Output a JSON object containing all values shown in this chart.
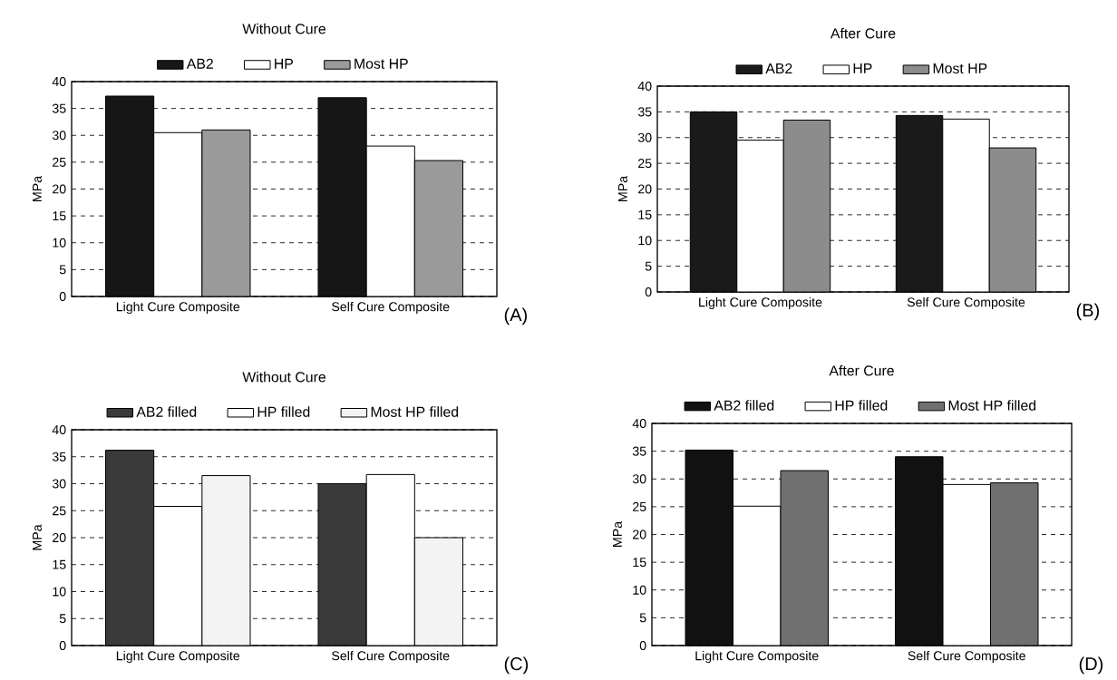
{
  "chart_data": [
    {
      "type": "bar",
      "title": "Without Cure",
      "ylabel": "MPa",
      "categories": [
        "Light Cure Composite",
        "Self Cure Composite"
      ],
      "series": [
        {
          "name": "AB2",
          "color": "#161616",
          "values": [
            37.3,
            37.0
          ]
        },
        {
          "name": "HP",
          "color": "#ffffff",
          "values": [
            30.5,
            28.0
          ]
        },
        {
          "name": "Most HP",
          "color": "#9a9a9a",
          "values": [
            31.0,
            25.3
          ]
        }
      ],
      "ylim": [
        0,
        40
      ],
      "yticks": [
        0,
        5,
        10,
        15,
        20,
        25,
        30,
        35,
        40
      ],
      "grid": "y",
      "legend": "top",
      "annotations": [
        "(A)"
      ]
    },
    {
      "type": "bar",
      "title": "After Cure",
      "ylabel": "MPa",
      "categories": [
        "Light Cure Composite",
        "Self Cure Composite"
      ],
      "series": [
        {
          "name": "AB2",
          "color": "#1a1a1a",
          "values": [
            35.0,
            34.3
          ]
        },
        {
          "name": "HP",
          "color": "#ffffff",
          "values": [
            29.5,
            33.6
          ]
        },
        {
          "name": "Most HP",
          "color": "#8c8c8c",
          "values": [
            33.4,
            28.0
          ]
        }
      ],
      "ylim": [
        0,
        40
      ],
      "yticks": [
        0,
        5,
        10,
        15,
        20,
        25,
        30,
        35,
        40
      ],
      "grid": "y",
      "legend": "top",
      "annotations": [
        "(B)"
      ]
    },
    {
      "type": "bar",
      "title": "Without Cure",
      "ylabel": "MPa",
      "categories": [
        "Light Cure Composite",
        "Self Cure Composite"
      ],
      "series": [
        {
          "name": "AB2 filled",
          "color": "#3a3a3a",
          "values": [
            36.2,
            30.0
          ]
        },
        {
          "name": "HP filled",
          "color": "#ffffff",
          "values": [
            25.8,
            31.7
          ]
        },
        {
          "name": "Most HP filled",
          "color": "#f3f3f3",
          "values": [
            31.5,
            20.0
          ]
        }
      ],
      "ylim": [
        0,
        40
      ],
      "yticks": [
        0,
        5,
        10,
        15,
        20,
        25,
        30,
        35,
        40
      ],
      "grid": "y",
      "legend": "top",
      "annotations": [
        "(C)"
      ]
    },
    {
      "type": "bar",
      "title": "After Cure",
      "ylabel": "MPa",
      "categories": [
        "Light Cure Composite",
        "Self Cure Composite"
      ],
      "series": [
        {
          "name": "AB2 filled",
          "color": "#111111",
          "values": [
            35.2,
            34.0
          ]
        },
        {
          "name": "HP filled",
          "color": "#ffffff",
          "values": [
            25.1,
            29.0
          ]
        },
        {
          "name": "Most HP filled",
          "color": "#707070",
          "values": [
            31.5,
            29.3
          ]
        }
      ],
      "ylim": [
        0,
        40
      ],
      "yticks": [
        0,
        5,
        10,
        15,
        20,
        25,
        30,
        35,
        40
      ],
      "grid": "y",
      "legend": "top",
      "annotations": [
        "(D)"
      ]
    }
  ]
}
